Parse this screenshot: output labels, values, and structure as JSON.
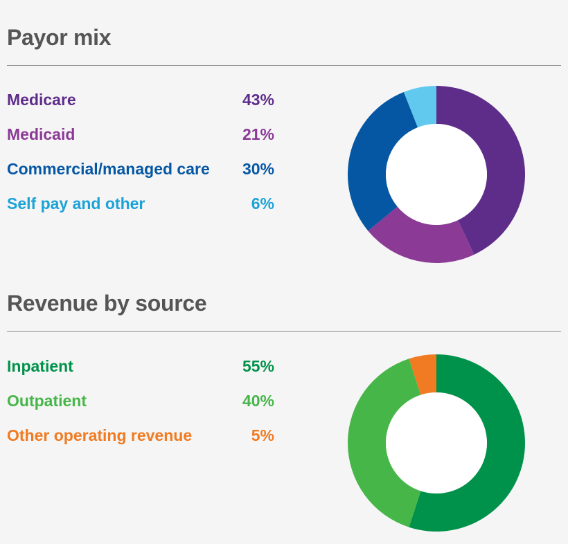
{
  "chart_data": [
    {
      "type": "pie",
      "variant": "donut",
      "title": "Payor mix",
      "categories": [
        "Medicare",
        "Medicaid",
        "Commercial/managed care",
        "Self pay and other"
      ],
      "values": [
        43,
        21,
        30,
        6
      ],
      "value_labels": [
        "43%",
        "21%",
        "30%",
        "6%"
      ],
      "colors": [
        "#5e2d8a",
        "#8b3a96",
        "#0557a4",
        "#62c9ee"
      ],
      "label_colors": [
        "#5e2d8a",
        "#8b3a96",
        "#0557a4",
        "#1ba3d8"
      ]
    },
    {
      "type": "pie",
      "variant": "donut",
      "title": "Revenue by source",
      "categories": [
        "Inpatient",
        "Outpatient",
        "Other operating revenue"
      ],
      "values": [
        55,
        40,
        5
      ],
      "value_labels": [
        "55%",
        "40%",
        "5%"
      ],
      "colors": [
        "#00924a",
        "#47b649",
        "#f07b22"
      ],
      "label_colors": [
        "#00924a",
        "#47b649",
        "#f07b22"
      ]
    }
  ]
}
